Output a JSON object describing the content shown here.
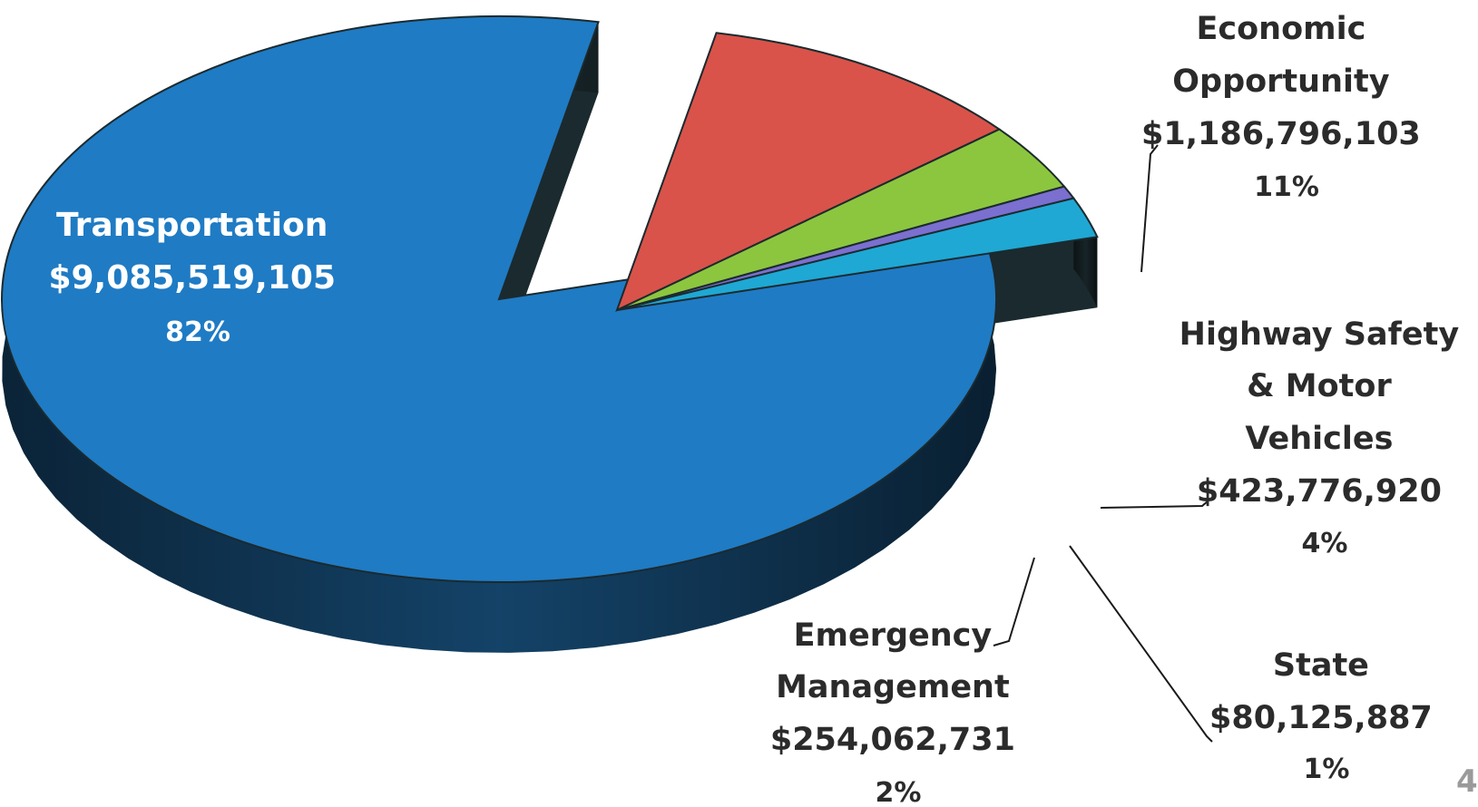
{
  "chart_data": {
    "type": "pie",
    "title": "",
    "style": "3d-exploded",
    "slices": [
      {
        "name": "Transportation",
        "value": 9085519105,
        "value_label": "$9,085,519,105",
        "percent_label": "82%",
        "color": "#1f7bc4",
        "side_color": "#174e7a"
      },
      {
        "name": "Economic Opportunity",
        "value": 1186796103,
        "value_label": "$1,186,796,103",
        "percent_label": "11%",
        "color": "#d9534a",
        "side_color": "#8a2e29"
      },
      {
        "name": "Highway Safety & Motor Vehicles",
        "value": 423776920,
        "value_label": "$423,776,920",
        "percent_label": "4%",
        "color": "#8cc63f",
        "side_color": "#4f7a20"
      },
      {
        "name": "State",
        "value": 80125887,
        "value_label": "$80,125,887",
        "percent_label": "1%",
        "color": "#7b6fd0",
        "side_color": "#453e80"
      },
      {
        "name": "Emergency Management",
        "value": 254062731,
        "value_label": "$254,062,731",
        "percent_label": "2%",
        "color": "#1fa8d4",
        "side_color": "#13637d"
      }
    ],
    "legend": "none"
  },
  "labels": {
    "transportation": {
      "lines": [
        "Transportation",
        "$9,085,519,105",
        "82%"
      ]
    },
    "economic": {
      "lines": [
        "Economic",
        "Opportunity",
        "$1,186,796,103",
        "11%"
      ]
    },
    "highway": {
      "lines": [
        "Highway Safety",
        "& Motor",
        "Vehicles",
        "$423,776,920",
        "4%"
      ]
    },
    "state": {
      "lines": [
        "State",
        "$80,125,887",
        "1%"
      ]
    },
    "emergency": {
      "lines": [
        "Emergency",
        "Management",
        "$254,062,731",
        "2%"
      ]
    }
  },
  "page_number": "4"
}
